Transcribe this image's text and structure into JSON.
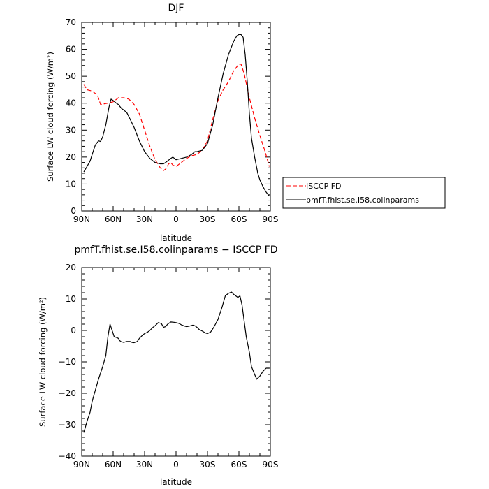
{
  "chart_data": [
    {
      "type": "line",
      "title": "DJF",
      "xlabel": "latitude",
      "ylabel": "Surface LW cloud forcing (W/m²)",
      "xlim": [
        -90,
        90
      ],
      "ylim": [
        0,
        70
      ],
      "xticks": [
        -90,
        -60,
        -30,
        0,
        30,
        60,
        90
      ],
      "xtick_labels": [
        "90N",
        "60N",
        "30N",
        "0",
        "30S",
        "60S",
        "90S"
      ],
      "yticks": [
        0,
        10,
        20,
        30,
        40,
        50,
        60,
        70
      ],
      "ytick_labels": [
        "0",
        "10",
        "20",
        "30",
        "40",
        "50",
        "60",
        "70"
      ],
      "grid": false,
      "legend": "outside-right",
      "series": [
        {
          "name": "ISCCP FD",
          "color": "#ff0000",
          "dash": "dashed",
          "points": [
            [
              -88,
              47
            ],
            [
              -85,
              45
            ],
            [
              -80,
              44.5
            ],
            [
              -75,
              43
            ],
            [
              -72,
              39.5
            ],
            [
              -65,
              40
            ],
            [
              -60,
              40.5
            ],
            [
              -55,
              42
            ],
            [
              -50,
              42
            ],
            [
              -45,
              41.5
            ],
            [
              -40,
              39.5
            ],
            [
              -35,
              36
            ],
            [
              -30,
              30
            ],
            [
              -25,
              24
            ],
            [
              -20,
              19
            ],
            [
              -15,
              16
            ],
            [
              -12,
              15
            ],
            [
              -10,
              15.5
            ],
            [
              -7,
              17.5
            ],
            [
              -5,
              18
            ],
            [
              -3,
              17
            ],
            [
              0,
              16.5
            ],
            [
              5,
              18
            ],
            [
              10,
              19.5
            ],
            [
              15,
              20.5
            ],
            [
              20,
              21
            ],
            [
              25,
              22.5
            ],
            [
              30,
              26
            ],
            [
              35,
              34
            ],
            [
              40,
              41
            ],
            [
              45,
              45
            ],
            [
              50,
              48
            ],
            [
              55,
              52
            ],
            [
              60,
              54.5
            ],
            [
              62,
              54.5
            ],
            [
              65,
              51
            ],
            [
              70,
              42
            ],
            [
              75,
              34.5
            ],
            [
              80,
              28
            ],
            [
              85,
              22
            ],
            [
              89,
              16.5
            ]
          ]
        },
        {
          "name": "pmfT.fhist.se.I58.colinparams",
          "color": "#000000",
          "dash": "solid",
          "points": [
            [
              -88,
              14.5
            ],
            [
              -85,
              16.5
            ],
            [
              -82,
              18.5
            ],
            [
              -80,
              21
            ],
            [
              -77,
              24.5
            ],
            [
              -74,
              26
            ],
            [
              -72,
              25.8
            ],
            [
              -70,
              27.5
            ],
            [
              -67,
              32
            ],
            [
              -64,
              38.5
            ],
            [
              -62,
              41.5
            ],
            [
              -60,
              41
            ],
            [
              -57,
              40
            ],
            [
              -55,
              39.5
            ],
            [
              -52,
              38
            ],
            [
              -50,
              37.5
            ],
            [
              -47,
              36.5
            ],
            [
              -45,
              35
            ],
            [
              -40,
              31
            ],
            [
              -35,
              26
            ],
            [
              -30,
              22
            ],
            [
              -25,
              19.5
            ],
            [
              -20,
              18
            ],
            [
              -15,
              17.5
            ],
            [
              -12,
              17.5
            ],
            [
              -10,
              18
            ],
            [
              -5,
              19.5
            ],
            [
              -3,
              20
            ],
            [
              0,
              19
            ],
            [
              5,
              19.5
            ],
            [
              10,
              20
            ],
            [
              15,
              21
            ],
            [
              18,
              22
            ],
            [
              20,
              22
            ],
            [
              25,
              22.5
            ],
            [
              30,
              25
            ],
            [
              35,
              32
            ],
            [
              40,
              42
            ],
            [
              45,
              51
            ],
            [
              50,
              58
            ],
            [
              55,
              63
            ],
            [
              58,
              65
            ],
            [
              60,
              65.5
            ],
            [
              62,
              65.5
            ],
            [
              64,
              64.5
            ],
            [
              66,
              58
            ],
            [
              68,
              48
            ],
            [
              70,
              36
            ],
            [
              72,
              27
            ],
            [
              75,
              20
            ],
            [
              78,
              14
            ],
            [
              80,
              11.5
            ],
            [
              83,
              9
            ],
            [
              86,
              7
            ],
            [
              89,
              5.5
            ]
          ]
        }
      ]
    },
    {
      "type": "line",
      "title": "pmfT.fhist.se.I58.colinparams − ISCCP FD",
      "xlabel": "latitude",
      "ylabel": "Surface LW cloud forcing (W/m²)",
      "xlim": [
        -90,
        90
      ],
      "ylim": [
        -40,
        20
      ],
      "xticks": [
        -90,
        -60,
        -30,
        0,
        30,
        60,
        90
      ],
      "xtick_labels": [
        "90N",
        "60N",
        "30N",
        "0",
        "30S",
        "60S",
        "90S"
      ],
      "yticks": [
        -40,
        -30,
        -20,
        -10,
        0,
        10,
        20
      ],
      "ytick_labels": [
        "−40",
        "−30",
        "−20",
        "−10",
        "0",
        "10",
        "20"
      ],
      "grid": false,
      "series": [
        {
          "color": "#000000",
          "dash": "solid",
          "points": [
            [
              -88,
              -32.5
            ],
            [
              -85,
              -29
            ],
            [
              -82,
              -26
            ],
            [
              -80,
              -22.5
            ],
            [
              -77,
              -19
            ],
            [
              -74,
              -15.5
            ],
            [
              -72,
              -13.5
            ],
            [
              -70,
              -11.5
            ],
            [
              -67,
              -8
            ],
            [
              -65,
              -2
            ],
            [
              -63,
              2
            ],
            [
              -61,
              0
            ],
            [
              -59,
              -2
            ],
            [
              -57,
              -2.2
            ],
            [
              -55,
              -2.5
            ],
            [
              -53,
              -3.5
            ],
            [
              -50,
              -3.8
            ],
            [
              -47,
              -3.5
            ],
            [
              -44,
              -3.5
            ],
            [
              -42,
              -3.8
            ],
            [
              -40,
              -3.9
            ],
            [
              -37,
              -3.5
            ],
            [
              -35,
              -2.5
            ],
            [
              -32,
              -1.5
            ],
            [
              -30,
              -1
            ],
            [
              -27,
              -0.5
            ],
            [
              -25,
              0
            ],
            [
              -22,
              1
            ],
            [
              -20,
              1.5
            ],
            [
              -17,
              2.5
            ],
            [
              -14,
              2.2
            ],
            [
              -12,
              1
            ],
            [
              -10,
              1.2
            ],
            [
              -8,
              2
            ],
            [
              -5,
              2.7
            ],
            [
              -2,
              2.6
            ],
            [
              0,
              2.5
            ],
            [
              3,
              2.2
            ],
            [
              5,
              1.8
            ],
            [
              8,
              1.4
            ],
            [
              10,
              1.2
            ],
            [
              13,
              1.4
            ],
            [
              16,
              1.7
            ],
            [
              18,
              1.5
            ],
            [
              20,
              1
            ],
            [
              22,
              0.3
            ],
            [
              25,
              -0.2
            ],
            [
              28,
              -0.8
            ],
            [
              30,
              -1
            ],
            [
              33,
              -0.5
            ],
            [
              36,
              1
            ],
            [
              40,
              3.5
            ],
            [
              44,
              7.5
            ],
            [
              47,
              11
            ],
            [
              50,
              11.8
            ],
            [
              53,
              12.2
            ],
            [
              55,
              11.5
            ],
            [
              57,
              11
            ],
            [
              59,
              10.5
            ],
            [
              61,
              11
            ],
            [
              63,
              8
            ],
            [
              65,
              3
            ],
            [
              67,
              -2
            ],
            [
              70,
              -7
            ],
            [
              72,
              -11.5
            ],
            [
              75,
              -14
            ],
            [
              77,
              -15.5
            ],
            [
              80,
              -14.5
            ],
            [
              83,
              -13
            ],
            [
              86,
              -12
            ],
            [
              89,
              -12
            ]
          ]
        }
      ]
    }
  ]
}
